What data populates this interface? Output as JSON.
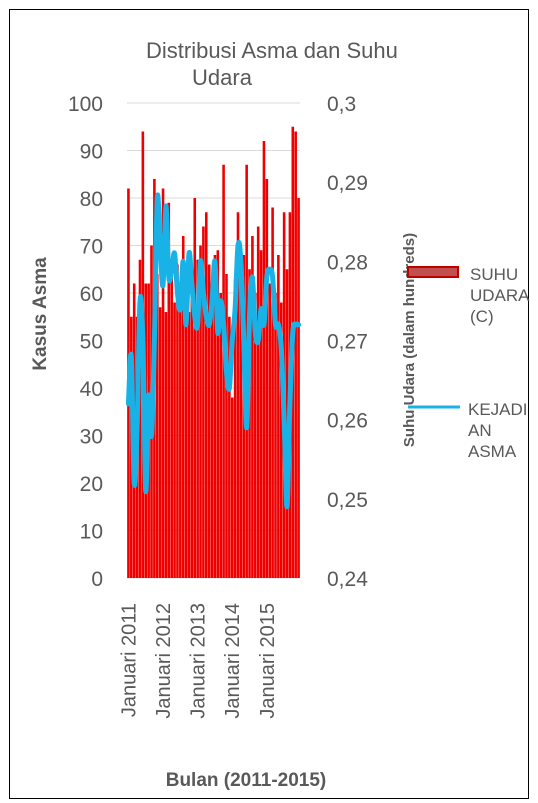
{
  "chart_data": {
    "type": "bar+line",
    "title": "Distribusi Asma dan Suhu Udara",
    "xlabel": "Bulan (2011-2015)",
    "ylabel": "Kasus Asma",
    "y2label": "Suhu Udara (dalam hundreds)",
    "ylim": [
      0,
      100
    ],
    "y_ticks": [
      "0",
      "10",
      "20",
      "30",
      "40",
      "50",
      "60",
      "70",
      "80",
      "90",
      "100"
    ],
    "y2lim": [
      0.24,
      0.3
    ],
    "y2_ticks": [
      "0,24",
      "0,25",
      "0,26",
      "0,27",
      "0,28",
      "0,29",
      "0,3"
    ],
    "x_tick_labels": [
      "Januari 2011",
      "Januari 2012",
      "Januari 2013",
      "Januari 2014",
      "Januari 2015"
    ],
    "grid": "horizontal major",
    "legend_position": "right",
    "colors": {
      "bars": "#ee0000",
      "line": "#19b2e6",
      "grid": "#d9d9d9"
    },
    "series": [
      {
        "name": "SUHU UDARA (C)",
        "axis": "left",
        "type": "bar",
        "values": [
          82,
          55,
          62,
          55,
          67,
          94,
          62,
          62,
          70,
          84,
          64,
          57,
          82,
          56,
          79,
          63,
          58,
          66,
          61,
          72,
          56,
          56,
          62,
          80,
          67,
          70,
          74,
          77,
          66,
          57,
          68,
          69,
          60,
          87,
          64,
          55,
          38,
          63,
          77,
          67,
          68,
          87,
          65,
          72,
          60,
          74,
          69,
          92,
          84,
          62,
          78,
          60,
          68,
          58,
          77,
          65,
          77,
          95,
          94,
          80
        ]
      },
      {
        "name": "KEJADIAN ASMA",
        "axis": "right",
        "type": "line",
        "values": [
          0.262,
          0.268,
          0.252,
          0.259,
          0.275,
          0.27,
          0.251,
          0.263,
          0.258,
          0.27,
          0.288,
          0.282,
          0.277,
          0.287,
          0.278,
          0.279,
          0.281,
          0.276,
          0.274,
          0.28,
          0.272,
          0.281,
          0.277,
          0.273,
          0.272,
          0.28,
          0.276,
          0.273,
          0.272,
          0.275,
          0.28,
          0.271,
          0.275,
          0.272,
          0.266,
          0.264,
          0.27,
          0.274,
          0.282,
          0.28,
          0.27,
          0.259,
          0.273,
          0.278,
          0.271,
          0.27,
          0.274,
          0.272,
          0.278,
          0.279,
          0.278,
          0.272,
          0.272,
          0.269,
          0.26,
          0.249,
          0.262,
          0.271,
          0.272,
          0.272
        ]
      }
    ]
  }
}
